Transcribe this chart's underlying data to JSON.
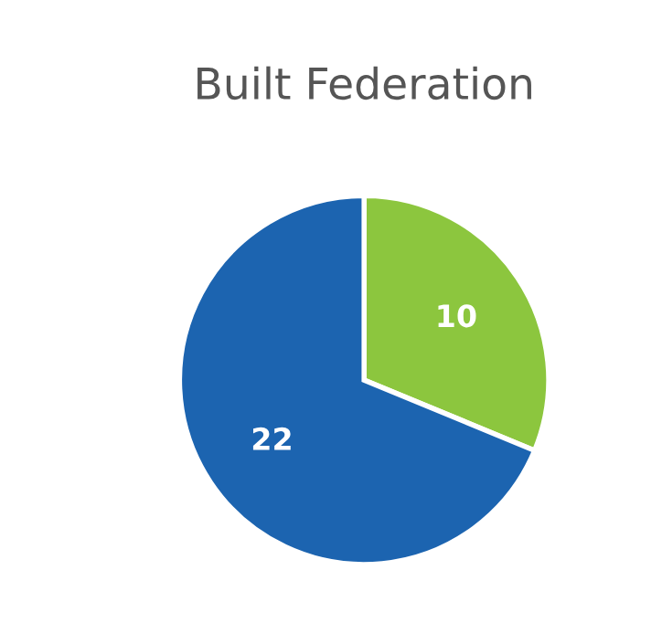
{
  "chart_data": {
    "type": "pie",
    "title": "Built Federation",
    "categories": [
      null,
      null
    ],
    "values": [
      10,
      22
    ],
    "colors": [
      "#8cc63e",
      "#1c64b0"
    ],
    "data_labels": true
  }
}
